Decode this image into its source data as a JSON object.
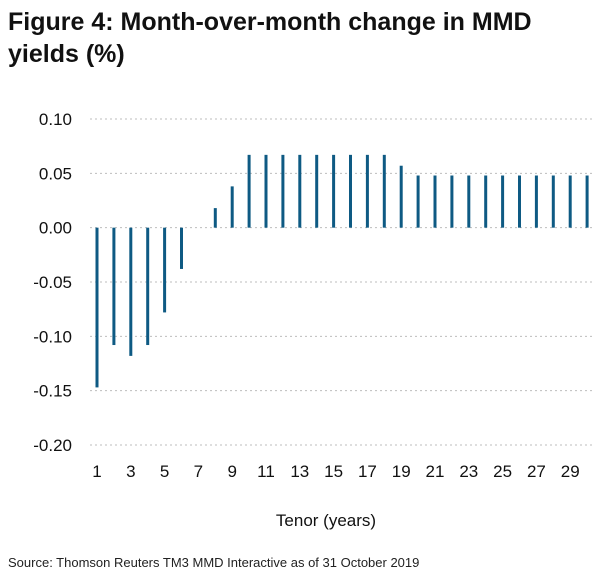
{
  "title": "Figure 4: Month-over-month change in MMD yields (%)",
  "source": "Source: Thomson Reuters TM3 MMD Interactive as of 31 October 2019",
  "colors": {
    "bar": "#0e5a83",
    "grid": "#bdbdbd",
    "text": "#111111"
  },
  "chart_data": {
    "type": "bar",
    "title": "Figure 4: Month-over-month change in MMD yields (%)",
    "xlabel": "Tenor (years)",
    "ylabel": "",
    "ylim": [
      -0.2,
      0.1
    ],
    "yticks": [
      "0.10",
      "0.05",
      "0.00",
      "-0.05",
      "-0.10",
      "-0.15",
      "-0.20"
    ],
    "grid": "horizontal dotted",
    "legend": "none",
    "categories": [
      1,
      2,
      3,
      4,
      5,
      6,
      7,
      8,
      9,
      10,
      11,
      12,
      13,
      14,
      15,
      16,
      17,
      18,
      19,
      20,
      21,
      22,
      23,
      24,
      25,
      26,
      27,
      28,
      29,
      30
    ],
    "xtick_labels": [
      "1",
      "3",
      "5",
      "7",
      "9",
      "11",
      "13",
      "15",
      "17",
      "19",
      "21",
      "23",
      "25",
      "27",
      "29"
    ],
    "values": [
      -0.147,
      -0.108,
      -0.118,
      -0.108,
      -0.078,
      -0.038,
      0.0,
      0.018,
      0.038,
      0.067,
      0.067,
      0.067,
      0.067,
      0.067,
      0.067,
      0.067,
      0.067,
      0.067,
      0.057,
      0.048,
      0.048,
      0.048,
      0.048,
      0.048,
      0.048,
      0.048,
      0.048,
      0.048,
      0.048,
      0.048
    ]
  }
}
